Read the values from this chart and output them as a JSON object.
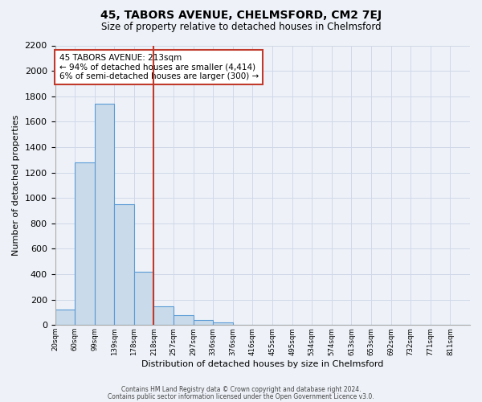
{
  "title": "45, TABORS AVENUE, CHELMSFORD, CM2 7EJ",
  "subtitle": "Size of property relative to detached houses in Chelmsford",
  "xlabel": "Distribution of detached houses by size in Chelmsford",
  "ylabel": "Number of detached properties",
  "footer_lines": [
    "Contains HM Land Registry data © Crown copyright and database right 2024.",
    "Contains public sector information licensed under the Open Government Licence v3.0."
  ],
  "bin_labels": [
    "20sqm",
    "60sqm",
    "99sqm",
    "139sqm",
    "178sqm",
    "218sqm",
    "257sqm",
    "297sqm",
    "336sqm",
    "376sqm",
    "416sqm",
    "455sqm",
    "495sqm",
    "534sqm",
    "574sqm",
    "613sqm",
    "653sqm",
    "692sqm",
    "732sqm",
    "771sqm",
    "811sqm"
  ],
  "bar_values": [
    120,
    1280,
    1740,
    950,
    420,
    150,
    80,
    40,
    20,
    0,
    0,
    0,
    0,
    0,
    0,
    0,
    0,
    0,
    0,
    0,
    0
  ],
  "bar_color": "#c9daea",
  "bar_edge_color": "#5b9bd5",
  "grid_color": "#d0d8e8",
  "background_color": "#eef2f8",
  "vline_x": 5,
  "vline_color": "#c0392b",
  "annotation_line1": "45 TABORS AVENUE: 213sqm",
  "annotation_line2": "← 94% of detached houses are smaller (4,414)",
  "annotation_line3": "6% of semi-detached houses are larger (300) →",
  "annotation_box_color": "#ffffff",
  "annotation_border_color": "#c0392b",
  "ylim": [
    0,
    2200
  ],
  "yticks": [
    0,
    200,
    400,
    600,
    800,
    1000,
    1200,
    1400,
    1600,
    1800,
    2000,
    2200
  ]
}
